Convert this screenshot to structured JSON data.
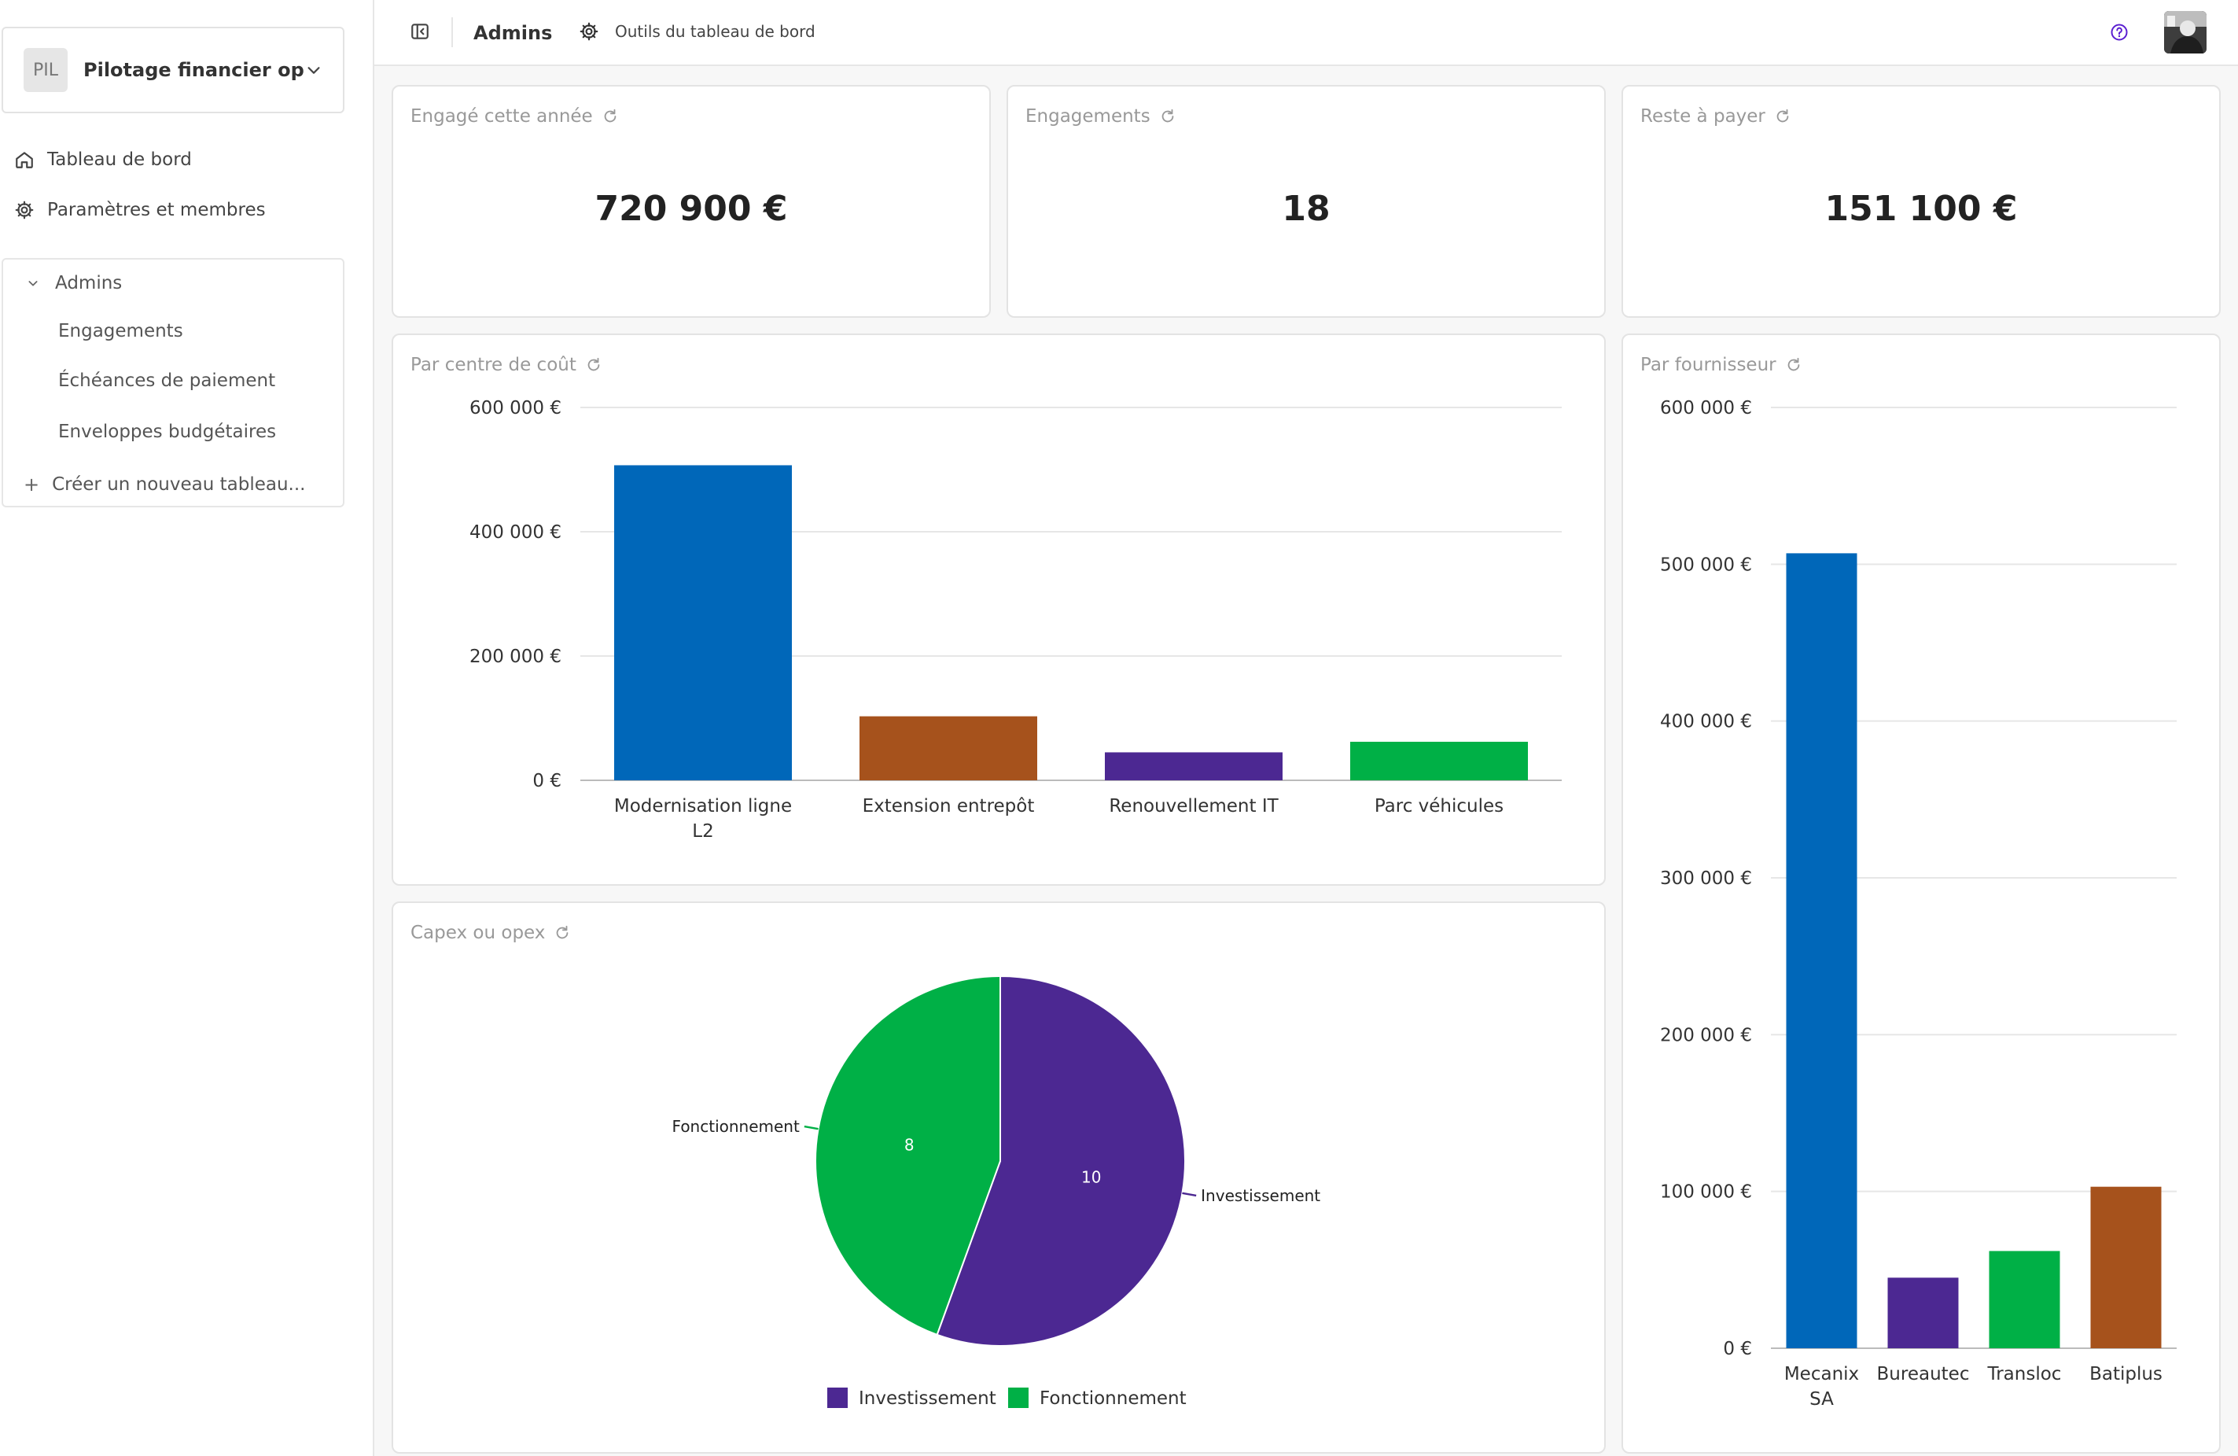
{
  "sidebar": {
    "workspace": {
      "badge": "PIL",
      "name": "Pilotage financier op..."
    },
    "nav": [
      {
        "label": "Tableau de bord",
        "icon": "home-icon"
      },
      {
        "label": "Paramètres et membres",
        "icon": "gear-icon"
      }
    ],
    "section": {
      "title": "Admins",
      "links": [
        "Engagements",
        "Échéances de paiement",
        "Enveloppes budgétaires"
      ],
      "create_label": "Créer un nouveau tableau..."
    }
  },
  "topbar": {
    "title": "Admins",
    "tools_label": "Outils du tableau de bord"
  },
  "kpis": [
    {
      "title": "Engagé cette année",
      "value": "720 900 €"
    },
    {
      "title": "Engagements",
      "value": "18"
    },
    {
      "title": "Reste à payer",
      "value": "151 100 €"
    }
  ],
  "charts": {
    "cost_center_title": "Par centre de coût",
    "supplier_title": "Par fournisseur",
    "capex_title": "Capex ou opex"
  },
  "chart_data": [
    {
      "id": "cost_center",
      "type": "bar",
      "title": "Par centre de coût",
      "categories": [
        [
          "Modernisation ligne",
          "L2"
        ],
        [
          "Extension entrepôt"
        ],
        [
          "Renouvellement IT"
        ],
        [
          "Parc véhicules"
        ]
      ],
      "values": [
        507000,
        103000,
        45000,
        62000
      ],
      "colors": [
        "#0067b9",
        "#a6521c",
        "#4c2892",
        "#00b046"
      ],
      "ylim": [
        0,
        600000
      ],
      "yticks": [
        0,
        200000,
        400000,
        600000
      ],
      "ytick_labels": [
        "0 €",
        "200 000 €",
        "400 000 €",
        "600 000 €"
      ],
      "grid": true
    },
    {
      "id": "supplier",
      "type": "bar",
      "title": "Par fournisseur",
      "categories": [
        [
          "Mecanix",
          "SA"
        ],
        [
          "Bureautec"
        ],
        [
          "Transloc"
        ],
        [
          "Batiplus"
        ]
      ],
      "values": [
        507000,
        45000,
        62000,
        103000
      ],
      "colors": [
        "#0067b9",
        "#4c2892",
        "#00b046",
        "#a6521c"
      ],
      "ylim": [
        0,
        600000
      ],
      "yticks": [
        0,
        100000,
        200000,
        300000,
        400000,
        500000,
        600000
      ],
      "ytick_labels": [
        "0 €",
        "100 000 €",
        "200 000 €",
        "300 000 €",
        "400 000 €",
        "500 000 €",
        "600 000 €"
      ],
      "grid": true
    },
    {
      "id": "capex",
      "type": "pie",
      "title": "Capex ou opex",
      "labels": [
        "Investissement",
        "Fonctionnement"
      ],
      "values": [
        10,
        8
      ],
      "colors": [
        "#4c2892",
        "#00b046"
      ],
      "legend": "bottom"
    }
  ]
}
